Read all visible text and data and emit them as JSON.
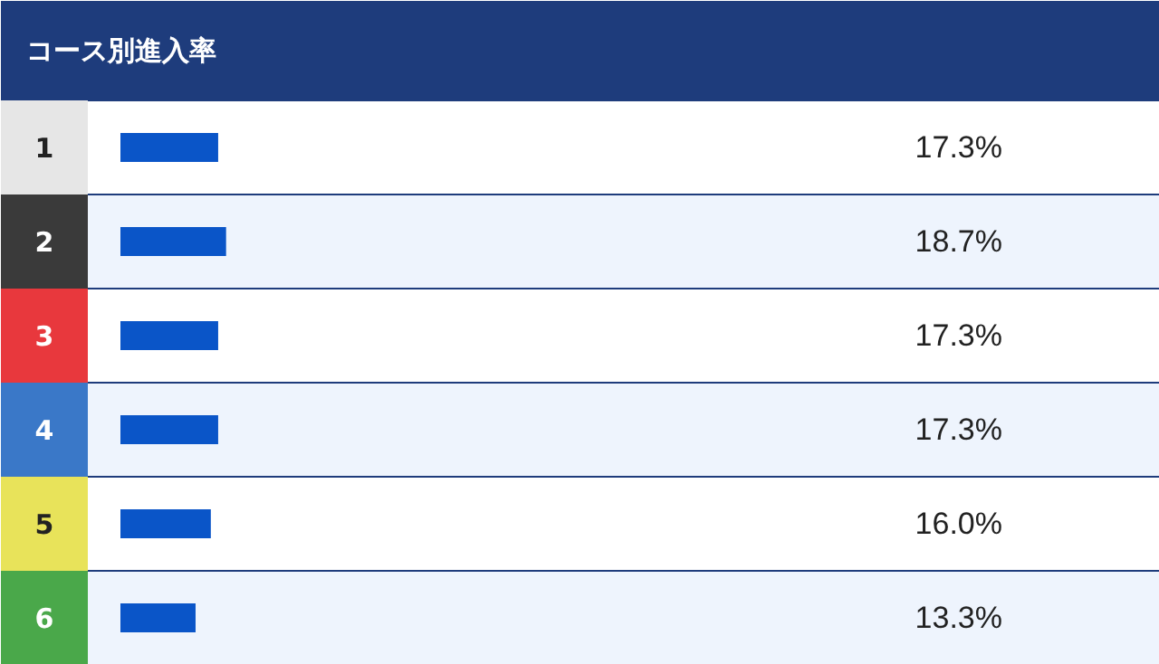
{
  "chart_data": {
    "type": "bar",
    "orientation": "horizontal",
    "title": "コース別進入率",
    "categories": [
      "1",
      "2",
      "3",
      "4",
      "5",
      "6"
    ],
    "values": [
      17.3,
      18.7,
      17.3,
      17.3,
      16.0,
      13.3
    ],
    "value_labels": [
      "17.3%",
      "18.7%",
      "17.3%",
      "17.3%",
      "16.0%",
      "13.3%"
    ],
    "color": "#0a55c8"
  }
}
